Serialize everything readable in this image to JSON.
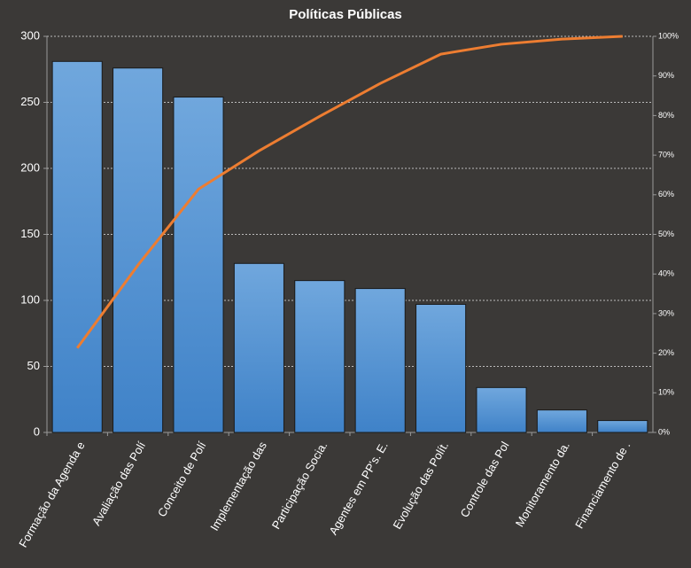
{
  "chart_data": {
    "type": "pareto",
    "title": "Políticas  Públicas",
    "categories": [
      "Formação da Agenda e",
      "Avaliação das Polí",
      "Conceito de Polí",
      "Implementação das",
      "Participação Socia.",
      "Agentes em PP's. E.",
      "Evolução das Polít.",
      "Controle das Pol",
      "Monitoramento  da.",
      "Financiamento de ."
    ],
    "series": [
      {
        "type": "bar",
        "color": "#5b9bd5",
        "values": [
          281,
          276,
          254,
          128,
          115,
          109,
          97,
          34,
          17,
          9
        ]
      },
      {
        "type": "line",
        "axis": "y2",
        "color": "#ed7d31",
        "values": [
          21.3,
          42.2,
          61.4,
          71.1,
          79.8,
          88.1,
          95.5,
          98.0,
          99.3,
          100
        ]
      }
    ],
    "ylim": [
      0,
      300
    ],
    "yticks": [
      0,
      50,
      100,
      150,
      200,
      250,
      300
    ],
    "y2lim": [
      0,
      100
    ],
    "y2ticks": [
      {
        "value": 0,
        "label": "0%"
      },
      {
        "value": 10,
        "label": "10%"
      },
      {
        "value": 20,
        "label": "20%"
      },
      {
        "value": 30,
        "label": "30%"
      },
      {
        "value": 40,
        "label": "40%"
      },
      {
        "value": 50,
        "label": "50%"
      },
      {
        "value": 60,
        "label": "60%"
      },
      {
        "value": 70,
        "label": "70%"
      },
      {
        "value": 80,
        "label": "80%"
      },
      {
        "value": 90,
        "label": "90%"
      },
      {
        "value": 100,
        "label": "100%"
      }
    ],
    "grid": true
  }
}
